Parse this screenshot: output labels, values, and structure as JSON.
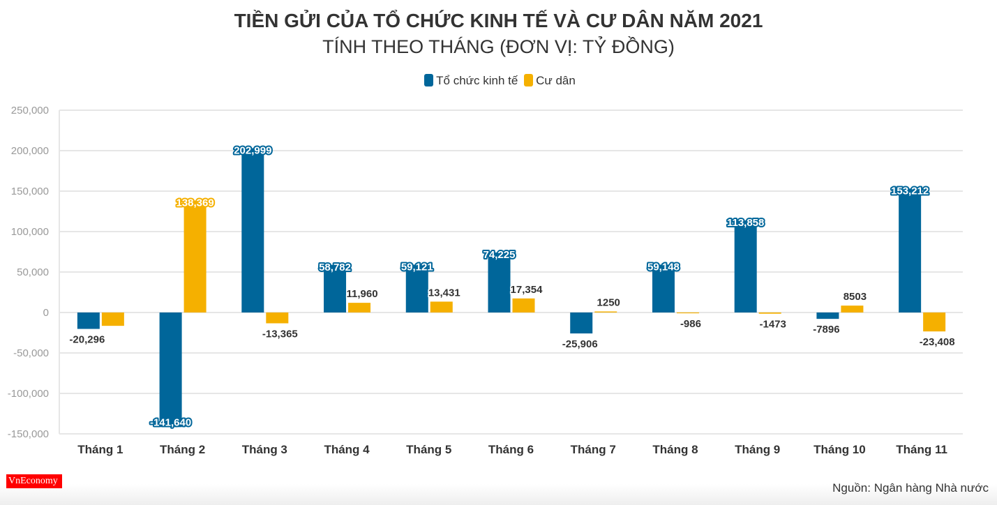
{
  "chart_data": {
    "type": "bar",
    "title": "TIỀN GỬI CỦA TỔ CHỨC KINH TẾ VÀ CƯ DÂN NĂM 2021",
    "subtitle": "TÍNH THEO THÁNG (ĐƠN VỊ: TỶ ĐỒNG)",
    "categories": [
      "Tháng 1",
      "Tháng 2",
      "Tháng 3",
      "Tháng 4",
      "Tháng 5",
      "Tháng 6",
      "Tháng 7",
      "Tháng 8",
      "Tháng 9",
      "Tháng 10",
      "Tháng 11"
    ],
    "series": [
      {
        "name": "Tổ chức kinh tế",
        "color": "#00669a",
        "values": [
          -20296,
          -141640,
          202999,
          58782,
          59121,
          74225,
          -25906,
          59148,
          113858,
          -7896,
          153212
        ],
        "labels": [
          "-20,296",
          "-141,640",
          "202,999",
          "58,782",
          "59,121",
          "74,225",
          "-25,906",
          "59,148",
          "113,858",
          "-7896",
          "153,212"
        ]
      },
      {
        "name": "Cư dân",
        "color": "#f5b000",
        "values": [
          -16500,
          138369,
          -13365,
          11960,
          13431,
          17354,
          1250,
          -986,
          -1473,
          8503,
          -23408
        ],
        "labels": [
          "",
          "138,369",
          "-13,365",
          "11,960",
          "13,431",
          "17,354",
          "1250",
          "-986",
          "-1473",
          "8503",
          "-23,408"
        ]
      }
    ],
    "yticks": [
      "250,000",
      "200,000",
      "150,000",
      "100,000",
      "50,000",
      "0",
      "-50,000",
      "-100,000",
      "-150,000"
    ],
    "ylim": [
      -150000,
      250000
    ],
    "grid": true,
    "legend": "top-center"
  },
  "source": "Nguồn: Ngân hàng Nhà nước",
  "logo": "VnEconomy"
}
